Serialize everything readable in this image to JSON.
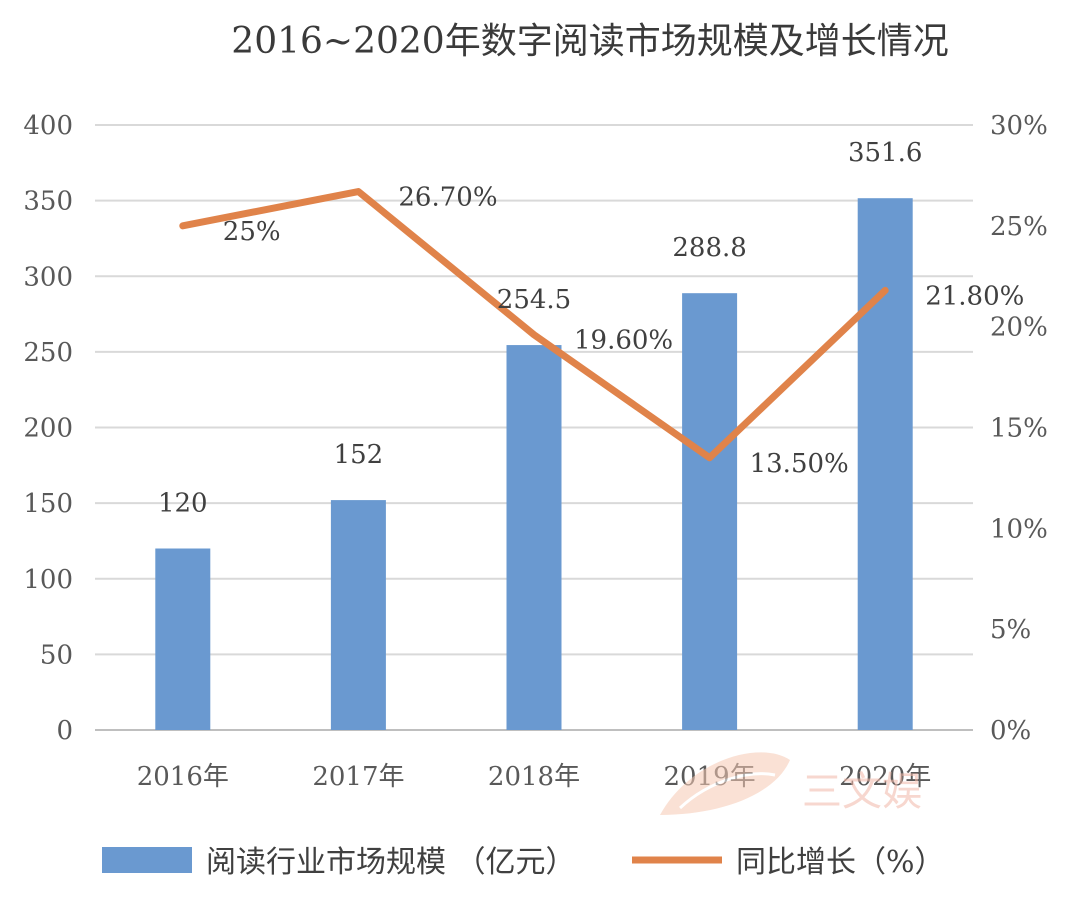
{
  "chart_data": {
    "type": "bar+line",
    "title": "2016~2020年数字阅读市场规模及增长情况",
    "categories": [
      "2016年",
      "2017年",
      "2018年",
      "2019年",
      "2020年"
    ],
    "series": [
      {
        "name": "阅读行业市场规模 （亿元）",
        "type": "bar",
        "axis": "left",
        "color": "#6a99d0",
        "values": [
          120,
          152,
          254.5,
          288.8,
          351.6
        ],
        "labels": [
          "120",
          "152",
          "254.5",
          "288.8",
          "351.6"
        ]
      },
      {
        "name": "同比增长（%）",
        "type": "line",
        "axis": "right",
        "color": "#e0834a",
        "values": [
          25,
          26.7,
          19.6,
          13.5,
          21.8
        ],
        "labels": [
          "25%",
          "26.70%",
          "19.60%",
          "13.50%",
          "21.80%"
        ]
      }
    ],
    "y_left": {
      "min": 0,
      "max": 400,
      "ticks": [
        "0",
        "50",
        "100",
        "150",
        "200",
        "250",
        "300",
        "350",
        "400"
      ]
    },
    "y_right": {
      "min": 0,
      "max": 30,
      "ticks": [
        "0%",
        "5%",
        "10%",
        "15%",
        "20%",
        "25%",
        "30%"
      ]
    },
    "grid": true,
    "legend_position": "bottom"
  },
  "watermark": {
    "text": "三文娱",
    "icon": "leaf-logo-icon"
  }
}
